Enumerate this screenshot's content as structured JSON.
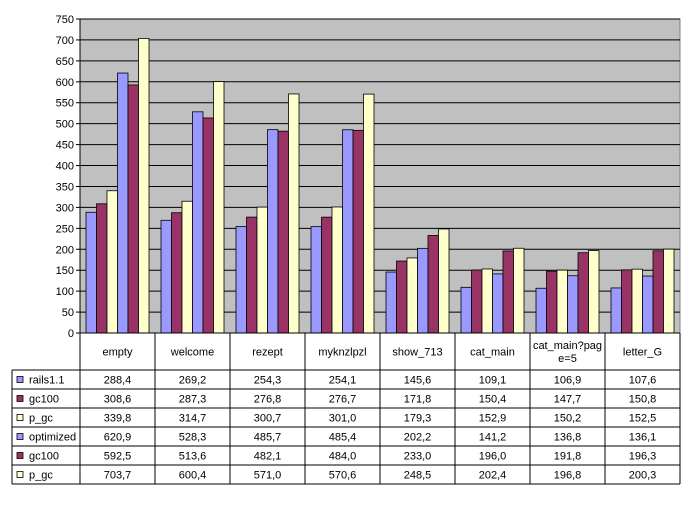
{
  "chart_data": {
    "type": "bar",
    "title": "",
    "xlabel": "",
    "ylabel": "",
    "ylim": [
      0,
      750
    ],
    "y_ticks": [
      0,
      50,
      100,
      150,
      200,
      250,
      300,
      350,
      400,
      450,
      500,
      550,
      600,
      650,
      700,
      750
    ],
    "grid": true,
    "legend": "data-table",
    "categories": [
      "empty",
      "welcome",
      "rezept",
      "myknzlpzl",
      "show_713",
      "cat_main",
      "cat_main?page=5",
      "letter_G"
    ],
    "category_lines": [
      [
        "empty"
      ],
      [
        "welcome"
      ],
      [
        "rezept"
      ],
      [
        "myknzlpzl"
      ],
      [
        "show_713"
      ],
      [
        "cat_main"
      ],
      [
        "cat_main?pag",
        "e=5"
      ],
      [
        "letter_G"
      ]
    ],
    "series": [
      {
        "name": "rails1.1",
        "color": "#9999ff",
        "values": [
          288.4,
          269.2,
          254.3,
          254.1,
          145.6,
          109.1,
          106.9,
          107.6
        ],
        "labels": [
          "288,4",
          "269,2",
          "254,3",
          "254,1",
          "145,6",
          "109,1",
          "106,9",
          "107,6"
        ]
      },
      {
        "name": "gc100",
        "color": "#993366",
        "values": [
          308.6,
          287.3,
          276.8,
          276.7,
          171.8,
          150.4,
          147.7,
          150.8
        ],
        "labels": [
          "308,6",
          "287,3",
          "276,8",
          "276,7",
          "171,8",
          "150,4",
          "147,7",
          "150,8"
        ]
      },
      {
        "name": "p_gc",
        "color": "#ffffcc",
        "values": [
          339.8,
          314.7,
          300.7,
          301.0,
          179.3,
          152.9,
          150.2,
          152.5
        ],
        "labels": [
          "339,8",
          "314,7",
          "300,7",
          "301,0",
          "179,3",
          "152,9",
          "150,2",
          "152,5"
        ]
      },
      {
        "name": "optimized",
        "color": "#9999ff",
        "values": [
          620.9,
          528.3,
          485.7,
          485.4,
          202.2,
          141.2,
          136.8,
          136.1
        ],
        "labels": [
          "620,9",
          "528,3",
          "485,7",
          "485,4",
          "202,2",
          "141,2",
          "136,8",
          "136,1"
        ]
      },
      {
        "name": "gc100",
        "color": "#993366",
        "values": [
          592.5,
          513.6,
          482.1,
          484.0,
          233.0,
          196.0,
          191.8,
          196.3
        ],
        "labels": [
          "592,5",
          "513,6",
          "482,1",
          "484,0",
          "233,0",
          "196,0",
          "191,8",
          "196,3"
        ]
      },
      {
        "name": "p_gc",
        "color": "#ffffcc",
        "values": [
          703.7,
          600.4,
          571.0,
          570.6,
          248.5,
          202.4,
          196.8,
          200.3
        ],
        "labels": [
          "703,7",
          "600,4",
          "571,0",
          "570,6",
          "248,5",
          "202,4",
          "196,8",
          "200,3"
        ]
      }
    ],
    "plot_background": "#c0c0c0"
  }
}
